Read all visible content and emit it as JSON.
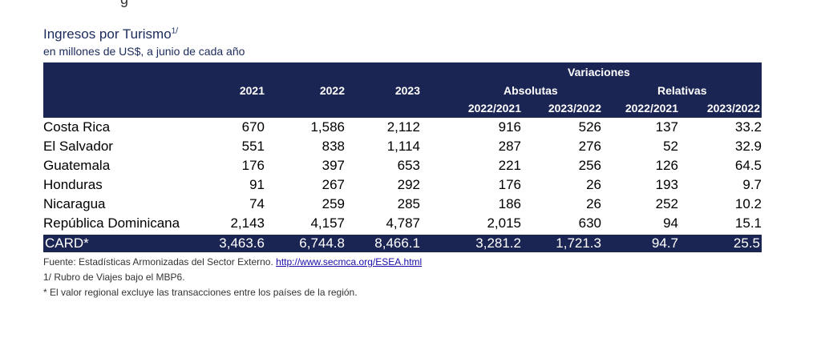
{
  "document": {
    "cut_off_text": "g",
    "title": "Ingresos por Turismo",
    "title_sup": "1/",
    "subtitle": "en millones de US$, a junio de cada año"
  },
  "table": {
    "header": {
      "variaciones": "Variaciones",
      "absolutas": "Absolutas",
      "relativas": "Relativas",
      "years": [
        "2021",
        "2022",
        "2023"
      ],
      "periods": [
        "2022/2021",
        "2023/2022",
        "2022/2021",
        "2023/2022"
      ]
    },
    "rows": [
      {
        "name": "Costa Rica",
        "values": [
          "670",
          "1,586",
          "2,112",
          "916",
          "526",
          "137",
          "33.2"
        ]
      },
      {
        "name": "El Salvador",
        "values": [
          "551",
          "838",
          "1,114",
          "287",
          "276",
          "52",
          "32.9"
        ]
      },
      {
        "name": "Guatemala",
        "values": [
          "176",
          "397",
          "653",
          "221",
          "256",
          "126",
          "64.5"
        ]
      },
      {
        "name": "Honduras",
        "values": [
          "91",
          "267",
          "292",
          "176",
          "26",
          "193",
          "9.7"
        ]
      },
      {
        "name": "Nicaragua",
        "values": [
          "74",
          "259",
          "285",
          "186",
          "26",
          "252",
          "10.2"
        ]
      },
      {
        "name": "República Dominicana",
        "values": [
          "2,143",
          "4,157",
          "4,787",
          "2,015",
          "630",
          "94",
          "15.1"
        ]
      }
    ],
    "total": {
      "name": "CARD*",
      "values": [
        "3,463.6",
        "6,744.8",
        "8,466.1",
        "3,281.2",
        "1,721.3",
        "94.7",
        "25.5"
      ]
    }
  },
  "notes": {
    "source_prefix": "Fuente: Estadísticas Armonizadas del Sector Externo. ",
    "source_link": "http://www.secmca.org/ESEA.html",
    "note1": "1/ Rubro de Viajes bajo el MBP6.",
    "note2": "* El valor regional excluye las transacciones entre los países de la región."
  },
  "colors": {
    "header_bg": "#1b2553",
    "title": "#1b2a5c"
  }
}
